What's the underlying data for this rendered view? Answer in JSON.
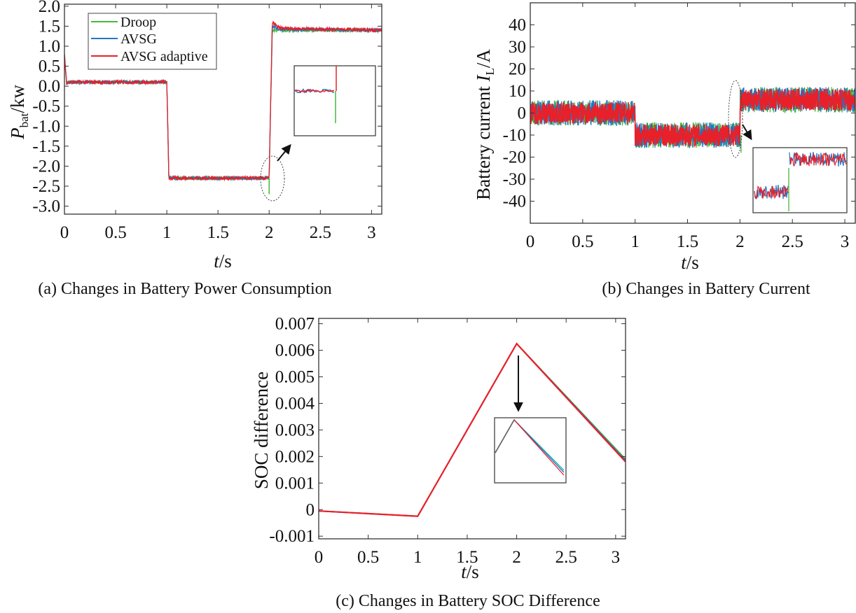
{
  "colors": {
    "droop": "#44b83a",
    "avsg": "#1f77c8",
    "avsg_adaptive": "#e8202a"
  },
  "chart_data": [
    {
      "type": "line",
      "panel": "a",
      "caption": "(a) Changes in Battery Power Consumption",
      "ylabel_main": "P",
      "ylabel_sub": "bat",
      "ylabel_unit": "/kw",
      "xlabel_main": "t",
      "xlabel_unit": "/s",
      "xlim": [
        0,
        3.1
      ],
      "ylim": [
        -3.2,
        2.05
      ],
      "xticks": [
        0,
        0.5,
        1,
        1.5,
        2,
        2.5,
        3
      ],
      "xtick_labels": [
        "0",
        "0.5",
        "1",
        "1.5",
        "2",
        "2.5",
        "3"
      ],
      "yticks": [
        2.0,
        1.5,
        1.0,
        0.5,
        0.0,
        -0.5,
        -1.0,
        -1.5,
        -2.0,
        -2.5,
        -3.0
      ],
      "ytick_labels": [
        "2.0",
        "1.5",
        "1.0",
        "0.5",
        "0.0",
        "-0.5",
        "-1.0",
        "-1.5",
        "-2.0",
        "-2.5",
        "-3.0"
      ],
      "legend": [
        "Droop",
        "AVSG",
        "AVSG adaptive"
      ],
      "legend_position": "top-left",
      "series": [
        {
          "name": "Droop",
          "x": [
            0,
            0.02,
            1.0,
            1.02,
            2.0,
            2.03,
            2.1,
            3.1
          ],
          "y": [
            0.8,
            0.1,
            0.1,
            -2.3,
            -2.3,
            1.4,
            1.4,
            1.4
          ]
        },
        {
          "name": "AVSG",
          "x": [
            0,
            0.02,
            1.0,
            1.02,
            2.0,
            2.03,
            2.1,
            3.1
          ],
          "y": [
            0.8,
            0.1,
            0.1,
            -2.3,
            -2.3,
            1.5,
            1.42,
            1.4
          ]
        },
        {
          "name": "AVSG adaptive",
          "x": [
            0,
            0.02,
            1.0,
            1.02,
            2.0,
            2.03,
            2.1,
            3.1
          ],
          "y": [
            0.8,
            0.1,
            0.1,
            -2.3,
            -2.3,
            1.6,
            1.45,
            1.4
          ]
        }
      ],
      "annotations": [
        "zoom ellipse around t=2 with inset"
      ]
    },
    {
      "type": "line",
      "panel": "b",
      "caption": "(b) Changes in Battery Current",
      "ylabel_main": "Battery  current",
      "ylabel_var": "I",
      "ylabel_sub": "L",
      "ylabel_unit": "/A",
      "xlabel_main": "t",
      "xlabel_unit": "/s",
      "xlim": [
        0,
        3.1
      ],
      "ylim": [
        -50,
        50
      ],
      "xticks": [
        0,
        0.5,
        1,
        1.5,
        2,
        2.5,
        3
      ],
      "xtick_labels": [
        "0",
        "0.5",
        "1",
        "1.5",
        "2",
        "2.5",
        "3"
      ],
      "yticks": [
        40,
        30,
        20,
        10,
        0,
        -10,
        -20,
        -30,
        -40
      ],
      "ytick_labels": [
        "40",
        "30",
        "20",
        "10",
        "0",
        "-10",
        "-20",
        "-30",
        "-40"
      ],
      "series": [
        {
          "name": "Droop",
          "x": [
            0,
            1,
            1,
            2,
            2,
            3.1
          ],
          "y": [
            0,
            0,
            -10,
            -10,
            6,
            6
          ],
          "band": 5
        },
        {
          "name": "AVSG",
          "x": [
            0,
            1,
            1,
            2,
            2,
            3.1
          ],
          "y": [
            0,
            0,
            -10,
            -10,
            6,
            6
          ],
          "band": 5
        },
        {
          "name": "AVSG adaptive",
          "x": [
            0,
            1,
            1,
            2,
            2,
            3.1
          ],
          "y": [
            0,
            0,
            -10,
            -10,
            6,
            6
          ],
          "band": 5
        }
      ],
      "annotations": [
        "zoom ellipse around t=2 with inset"
      ]
    },
    {
      "type": "line",
      "panel": "c",
      "caption": "(c) Changes in Battery SOC Difference",
      "ylabel_main": "SOC difference",
      "xlabel_main": "t",
      "xlabel_unit": "/s",
      "xlim": [
        0,
        3.1
      ],
      "ylim": [
        -0.0011,
        0.0072
      ],
      "xticks": [
        0,
        0.5,
        1,
        1.5,
        2,
        2.5,
        3
      ],
      "xtick_labels": [
        "0",
        "0.5",
        "1",
        "1.5",
        "2",
        "2.5",
        "3"
      ],
      "yticks": [
        0.007,
        0.006,
        0.005,
        0.004,
        0.003,
        0.002,
        0.001,
        0,
        -0.001
      ],
      "ytick_labels": [
        "0.007",
        "0.006",
        "0.005",
        "0.004",
        "0.003",
        "0.002",
        "0.001",
        "0",
        "-0.001"
      ],
      "series": [
        {
          "name": "Droop",
          "x": [
            0,
            1,
            2,
            3.1
          ],
          "y": [
            -5e-05,
            -0.00025,
            0.00625,
            0.0019
          ]
        },
        {
          "name": "AVSG",
          "x": [
            0,
            1,
            2,
            3.1
          ],
          "y": [
            -5e-05,
            -0.00025,
            0.00625,
            0.00185
          ]
        },
        {
          "name": "AVSG adaptive",
          "x": [
            0,
            1,
            2,
            3.1
          ],
          "y": [
            -5e-05,
            -0.00025,
            0.00625,
            0.0018
          ]
        }
      ],
      "annotations": [
        "arrow pointing from t=2 peak down to inset"
      ]
    }
  ]
}
